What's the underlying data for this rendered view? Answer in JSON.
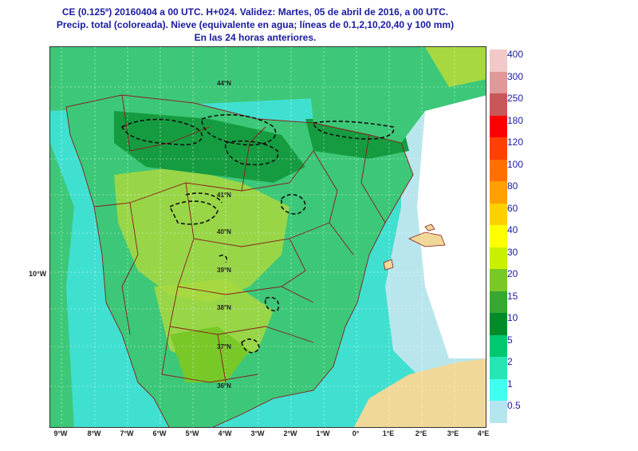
{
  "header": {
    "line1": "CE (0.125º) 20160404 a 00 UTC.  H+024. Validez: Martes, 05 de abril de 2016,  a  00 UTC.",
    "line2": "Precip. total (coloreada). Nieve (equivalente en agua; líneas de 0.1,2,10,20,40 y 100 mm)",
    "line3": "En las 24 horas anteriores."
  },
  "map": {
    "lon_labels": [
      "9°W",
      "8°W",
      "7°W",
      "6°W",
      "5°W",
      "4°W",
      "3°W",
      "2°W",
      "1°W",
      "0°",
      "1°E",
      "2°E",
      "3°E",
      "4°E"
    ],
    "lat_labels": [
      "44°N",
      "41°N",
      "40°N",
      "39°N",
      "38°N",
      "37°N",
      "36°N"
    ],
    "left_lon_label": "10°W",
    "colors": {
      "sea_light": "#b8e6ec",
      "cyan": "#40e0d0",
      "land_green": "#3cc878",
      "dark_green": "#169c40",
      "yellow_green": "#a8d840",
      "sea_white": "#ffffff",
      "africa_sand": "#f0d898",
      "borders": "#8b1a1a"
    }
  },
  "legend": [
    {
      "label": "400",
      "color": "#f2c8c8"
    },
    {
      "label": "300",
      "color": "#e09898"
    },
    {
      "label": "250",
      "color": "#c85858"
    },
    {
      "label": "180",
      "color": "#ff0000"
    },
    {
      "label": "120",
      "color": "#ff4000"
    },
    {
      "label": "100",
      "color": "#ff7000"
    },
    {
      "label": "80",
      "color": "#ffa000"
    },
    {
      "label": "60",
      "color": "#ffd000"
    },
    {
      "label": "40",
      "color": "#ffff00"
    },
    {
      "label": "30",
      "color": "#c8f000"
    },
    {
      "label": "20",
      "color": "#78c828"
    },
    {
      "label": "15",
      "color": "#36a830"
    },
    {
      "label": "10",
      "color": "#008c28"
    },
    {
      "label": "5",
      "color": "#00c870"
    },
    {
      "label": "2",
      "color": "#28e6b4"
    },
    {
      "label": "1",
      "color": "#40fff0"
    },
    {
      "label": "0.5",
      "color": "#b4e6f0"
    }
  ]
}
